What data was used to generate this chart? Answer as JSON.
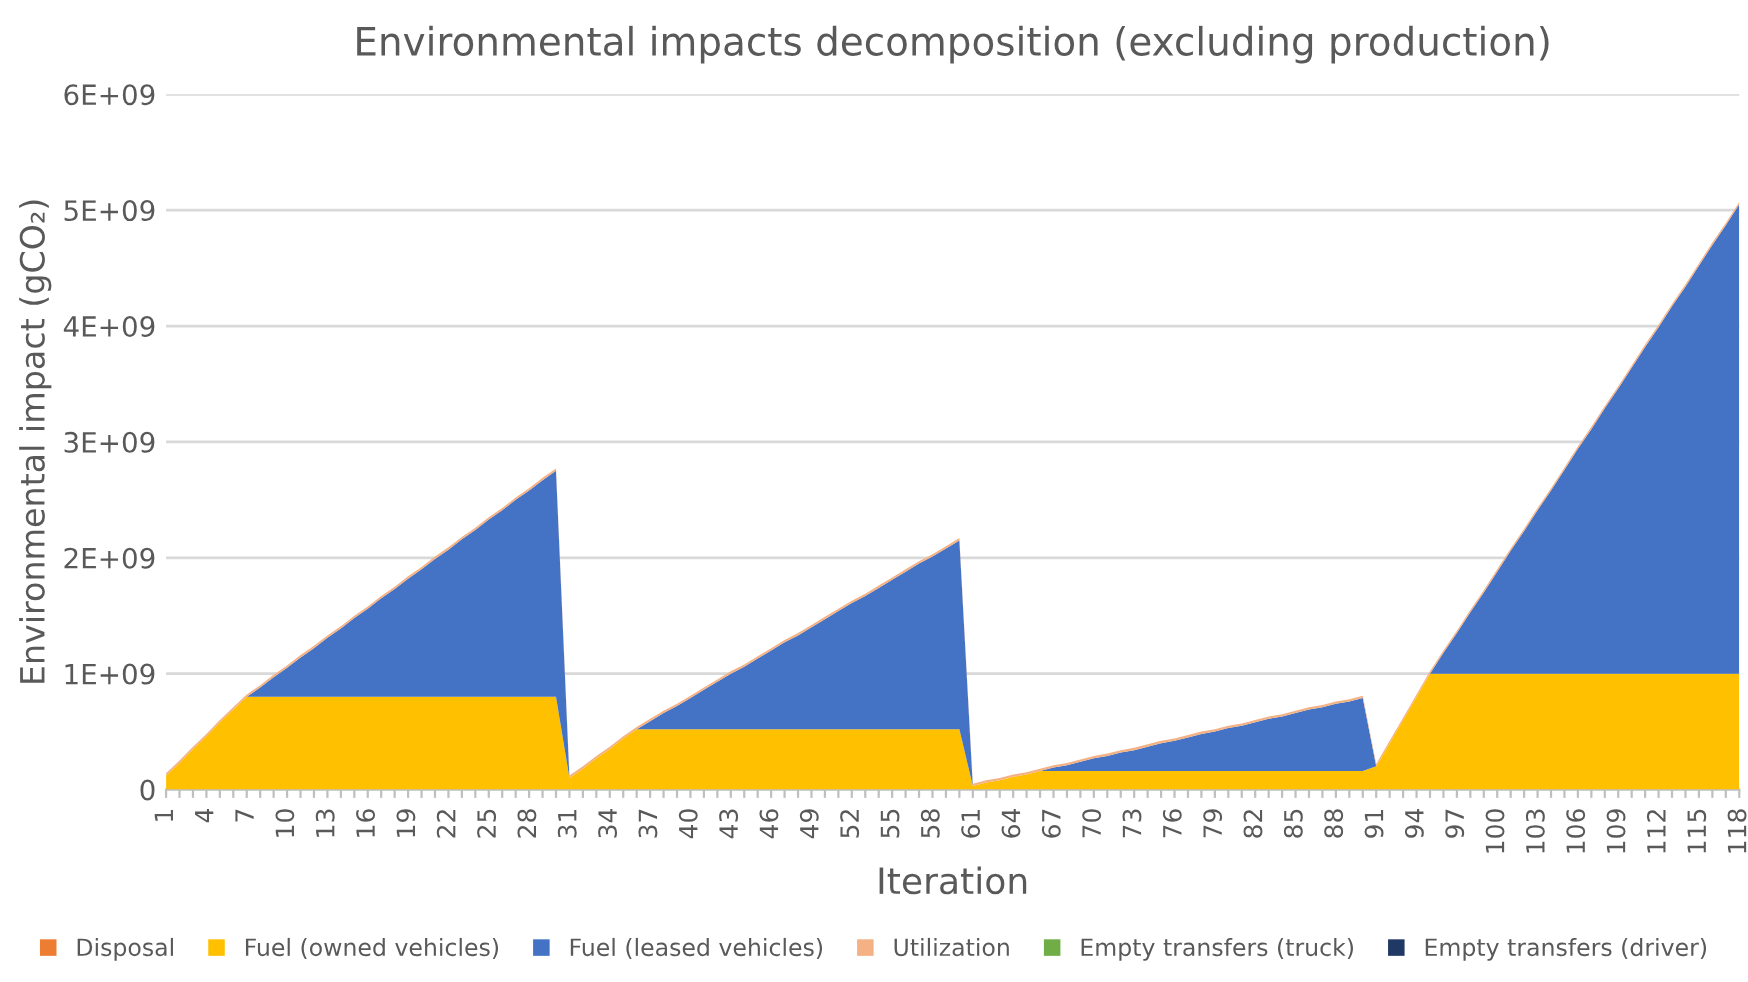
{
  "chart_data": {
    "type": "area",
    "stacked": true,
    "title": "Environmental impacts decomposition (excluding production)",
    "xlabel": "Iteration",
    "ylabel": "Environmental impact (gCO₂)",
    "categories": [
      "1",
      null,
      null,
      "4",
      null,
      null,
      "7",
      null,
      null,
      "10",
      null,
      null,
      "13",
      null,
      null,
      "16",
      null,
      null,
      "19",
      null,
      null,
      "22",
      null,
      null,
      "25",
      null,
      null,
      "28",
      null,
      null,
      "31",
      null,
      null,
      "34",
      null,
      null,
      "37",
      null,
      null,
      "40",
      null,
      null,
      "43",
      null,
      null,
      "46",
      null,
      null,
      "49",
      null,
      null,
      "52",
      null,
      null,
      "55",
      null,
      null,
      "58",
      null,
      null,
      "61",
      null,
      null,
      "64",
      null,
      null,
      "67",
      null,
      null,
      "70",
      null,
      null,
      "73",
      null,
      null,
      "76",
      null,
      null,
      "79",
      null,
      null,
      "82",
      null,
      null,
      "85",
      null,
      null,
      "88",
      null,
      null,
      "91",
      null,
      null,
      "94",
      null,
      null,
      "97",
      null,
      null,
      "100",
      null,
      null,
      "103",
      null,
      null,
      "106",
      null,
      null,
      "109",
      null,
      null,
      "112",
      null,
      null,
      "115",
      null,
      null,
      "118"
    ],
    "ylim": [
      0,
      6000000000.0
    ],
    "yticks": [
      0,
      {
        "value": 1000000000.0,
        "label": "1E+09"
      },
      {
        "value": 2000000000.0,
        "label": "2E+09"
      },
      {
        "value": 3000000000.0,
        "label": "3E+09"
      },
      {
        "value": 4000000000.0,
        "label": "4E+09"
      },
      {
        "value": 5000000000.0,
        "label": "5E+09"
      },
      {
        "value": 6000000000.0,
        "label": "6E+09"
      }
    ],
    "grid": "y",
    "legend": "bottom",
    "series": [
      {
        "name": "Disposal",
        "color": "#ed7d31",
        "values": [
          null,
          null,
          null,
          null,
          null,
          null,
          null,
          null,
          null,
          null,
          null,
          null,
          null,
          null,
          null,
          null,
          null,
          null,
          null,
          null,
          null,
          null,
          null,
          null,
          null,
          null,
          null,
          null,
          null,
          null,
          null,
          null,
          null,
          null,
          null,
          null,
          null,
          null,
          null,
          null,
          null,
          null,
          null,
          null,
          null,
          null,
          null,
          null,
          null,
          null,
          null,
          null,
          null,
          null,
          null,
          null,
          null,
          null,
          null,
          null,
          null,
          null,
          null,
          null,
          null,
          null,
          null,
          null,
          null,
          null,
          null,
          null,
          null,
          null,
          null,
          null,
          null,
          null,
          null,
          null,
          null,
          null,
          null,
          null,
          null,
          null,
          null,
          null,
          null,
          null,
          null,
          null,
          null,
          null,
          null,
          null,
          null,
          null,
          null,
          null,
          null,
          null,
          null,
          null,
          null,
          null,
          null,
          null,
          null,
          null,
          null,
          null,
          null,
          null,
          null,
          null,
          null,
          null
        ]
      },
      {
        "name": "Fuel (owned vehicles)",
        "color": "#ffc000",
        "values": [
          120000000.0,
          230000000.0,
          350000000.0,
          460000000.0,
          580000000.0,
          690000000.0,
          800000000.0,
          800000000.0,
          800000000.0,
          800000000.0,
          800000000.0,
          800000000.0,
          800000000.0,
          800000000.0,
          800000000.0,
          800000000.0,
          800000000.0,
          800000000.0,
          800000000.0,
          800000000.0,
          800000000.0,
          800000000.0,
          800000000.0,
          800000000.0,
          800000000.0,
          800000000.0,
          800000000.0,
          800000000.0,
          800000000.0,
          800000000.0,
          100000000.0,
          180000000.0,
          270000000.0,
          350000000.0,
          440000000.0,
          520000000.0,
          520000000.0,
          520000000.0,
          520000000.0,
          520000000.0,
          520000000.0,
          520000000.0,
          520000000.0,
          520000000.0,
          520000000.0,
          520000000.0,
          520000000.0,
          520000000.0,
          520000000.0,
          520000000.0,
          520000000.0,
          520000000.0,
          520000000.0,
          520000000.0,
          520000000.0,
          520000000.0,
          520000000.0,
          520000000.0,
          520000000.0,
          520000000.0,
          30000000.0,
          60000000.0,
          80000000.0,
          110000000.0,
          130000000.0,
          160000000.0,
          160000000.0,
          160000000.0,
          160000000.0,
          160000000.0,
          160000000.0,
          160000000.0,
          160000000.0,
          160000000.0,
          160000000.0,
          160000000.0,
          160000000.0,
          160000000.0,
          160000000.0,
          160000000.0,
          160000000.0,
          160000000.0,
          160000000.0,
          160000000.0,
          160000000.0,
          160000000.0,
          160000000.0,
          160000000.0,
          160000000.0,
          160000000.0,
          200000000.0,
          400000000.0,
          600000000.0,
          800000000.0,
          1000000000.0,
          1000000000.0,
          1000000000.0,
          1000000000.0,
          1000000000.0,
          1000000000.0,
          1000000000.0,
          1000000000.0,
          1000000000.0,
          1000000000.0,
          1000000000.0,
          1000000000.0,
          1000000000.0,
          1000000000.0,
          1000000000.0,
          1000000000.0,
          1000000000.0,
          1000000000.0,
          1000000000.0,
          1000000000.0,
          1000000000.0,
          1000000000.0,
          1000000000.0,
          1000000000.0
        ]
      },
      {
        "name": "Fuel (leased vehicles)",
        "color": "#4472c4",
        "values": [
          0,
          0,
          0,
          0,
          0,
          0,
          0,
          80000000.0,
          170000000.0,
          250000000.0,
          340000000.0,
          420000000.0,
          510000000.0,
          590000000.0,
          680000000.0,
          760000000.0,
          850000000.0,
          930000000.0,
          1020000000.0,
          1100000000.0,
          1190000000.0,
          1270000000.0,
          1360000000.0,
          1440000000.0,
          1530000000.0,
          1610000000.0,
          1700000000.0,
          1780000000.0,
          1870000000.0,
          1950000000.0,
          0,
          0,
          0,
          0,
          0,
          0,
          70000000.0,
          140000000.0,
          200000000.0,
          270000000.0,
          340000000.0,
          410000000.0,
          480000000.0,
          540000000.0,
          610000000.0,
          680000000.0,
          750000000.0,
          810000000.0,
          880000000.0,
          950000000.0,
          1020000000.0,
          1090000000.0,
          1150000000.0,
          1220000000.0,
          1290000000.0,
          1360000000.0,
          1430000000.0,
          1490000000.0,
          1560000000.0,
          1630000000.0,
          0,
          0,
          0,
          0,
          0,
          0,
          30000000.0,
          50000000.0,
          80000000.0,
          110000000.0,
          130000000.0,
          160000000.0,
          180000000.0,
          210000000.0,
          240000000.0,
          260000000.0,
          290000000.0,
          320000000.0,
          340000000.0,
          370000000.0,
          390000000.0,
          420000000.0,
          450000000.0,
          470000000.0,
          500000000.0,
          530000000.0,
          550000000.0,
          580000000.0,
          600000000.0,
          630000000.0,
          0,
          0,
          0,
          0,
          0,
          180000000.0,
          350000000.0,
          530000000.0,
          700000000.0,
          880000000.0,
          1060000000.0,
          1230000000.0,
          1410000000.0,
          1580000000.0,
          1760000000.0,
          1940000000.0,
          2110000000.0,
          2290000000.0,
          2460000000.0,
          2640000000.0,
          2820000000.0,
          2990000000.0,
          3170000000.0,
          3340000000.0,
          3520000000.0,
          3700000000.0,
          3870000000.0,
          4050000000.0
        ]
      },
      {
        "name": "Utilization",
        "color": "#f4b183",
        "values": [
          20000000.0,
          20000000.0,
          20000000.0,
          20000000.0,
          20000000.0,
          20000000.0,
          20000000.0,
          20000000.0,
          20000000.0,
          20000000.0,
          20000000.0,
          20000000.0,
          20000000.0,
          20000000.0,
          20000000.0,
          20000000.0,
          20000000.0,
          20000000.0,
          20000000.0,
          20000000.0,
          20000000.0,
          20000000.0,
          20000000.0,
          20000000.0,
          20000000.0,
          20000000.0,
          20000000.0,
          20000000.0,
          20000000.0,
          20000000.0,
          20000000.0,
          20000000.0,
          20000000.0,
          20000000.0,
          20000000.0,
          20000000.0,
          20000000.0,
          20000000.0,
          20000000.0,
          20000000.0,
          20000000.0,
          20000000.0,
          20000000.0,
          20000000.0,
          20000000.0,
          20000000.0,
          20000000.0,
          20000000.0,
          20000000.0,
          20000000.0,
          20000000.0,
          20000000.0,
          20000000.0,
          20000000.0,
          20000000.0,
          20000000.0,
          20000000.0,
          20000000.0,
          20000000.0,
          20000000.0,
          20000000.0,
          20000000.0,
          20000000.0,
          20000000.0,
          20000000.0,
          20000000.0,
          20000000.0,
          20000000.0,
          20000000.0,
          20000000.0,
          20000000.0,
          20000000.0,
          20000000.0,
          20000000.0,
          20000000.0,
          20000000.0,
          20000000.0,
          20000000.0,
          20000000.0,
          20000000.0,
          20000000.0,
          20000000.0,
          20000000.0,
          20000000.0,
          20000000.0,
          20000000.0,
          20000000.0,
          20000000.0,
          20000000.0,
          20000000.0,
          20000000.0,
          20000000.0,
          20000000.0,
          20000000.0,
          20000000.0,
          20000000.0,
          20000000.0,
          20000000.0,
          20000000.0,
          20000000.0,
          20000000.0,
          20000000.0,
          20000000.0,
          20000000.0,
          20000000.0,
          20000000.0,
          20000000.0,
          20000000.0,
          20000000.0,
          20000000.0,
          20000000.0,
          20000000.0,
          20000000.0,
          20000000.0,
          20000000.0,
          20000000.0,
          20000000.0,
          20000000.0
        ]
      },
      {
        "name": "Empty transfers (truck)",
        "color": "#70ad47",
        "values": [
          null,
          null,
          null,
          null,
          null,
          null,
          null,
          null,
          null,
          null,
          null,
          null,
          null,
          null,
          null,
          null,
          null,
          null,
          null,
          null,
          null,
          null,
          null,
          null,
          null,
          null,
          null,
          null,
          null,
          null,
          null,
          null,
          null,
          null,
          null,
          null,
          null,
          null,
          null,
          null,
          null,
          null,
          null,
          null,
          null,
          null,
          null,
          null,
          null,
          null,
          null,
          null,
          null,
          null,
          null,
          null,
          null,
          null,
          null,
          null,
          null,
          null,
          null,
          null,
          null,
          null,
          null,
          null,
          null,
          null,
          null,
          null,
          null,
          null,
          null,
          null,
          null,
          null,
          null,
          null,
          null,
          null,
          null,
          null,
          null,
          null,
          null,
          null,
          null,
          null,
          null,
          null,
          null,
          null,
          null,
          null,
          null,
          null,
          null,
          null,
          null,
          null,
          null,
          null,
          null,
          null,
          null,
          null,
          null,
          null,
          null,
          null,
          null,
          null,
          null,
          null,
          null,
          null
        ]
      },
      {
        "name": "Empty transfers (driver)",
        "color": "#203864",
        "values": [
          null,
          null,
          null,
          null,
          null,
          null,
          null,
          null,
          null,
          null,
          null,
          null,
          null,
          null,
          null,
          null,
          null,
          null,
          null,
          null,
          null,
          null,
          null,
          null,
          null,
          null,
          null,
          null,
          null,
          null,
          null,
          null,
          null,
          null,
          null,
          null,
          null,
          null,
          null,
          null,
          null,
          null,
          null,
          null,
          null,
          null,
          null,
          null,
          null,
          null,
          null,
          null,
          null,
          null,
          null,
          null,
          null,
          null,
          null,
          null,
          null,
          null,
          null,
          null,
          null,
          null,
          null,
          null,
          null,
          null,
          null,
          null,
          null,
          null,
          null,
          null,
          null,
          null,
          null,
          null,
          null,
          null,
          null,
          null,
          null,
          null,
          null,
          null,
          null,
          null,
          null,
          null,
          null,
          null,
          null,
          null,
          null,
          null,
          null,
          null,
          null,
          null,
          null,
          null,
          null,
          null,
          null,
          null,
          null,
          null,
          null,
          null,
          null,
          null,
          null,
          null,
          null,
          null
        ]
      }
    ]
  }
}
